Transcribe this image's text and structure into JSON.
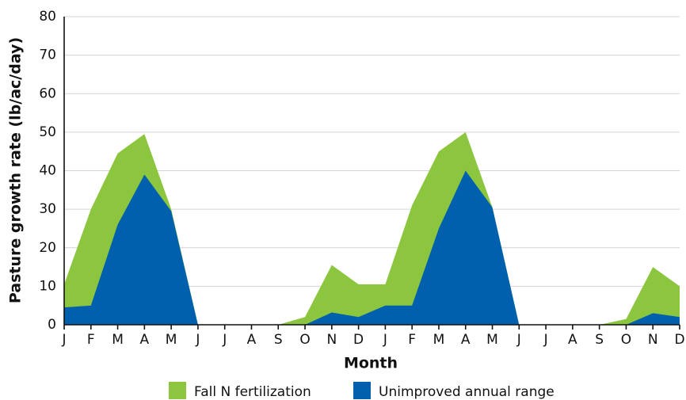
{
  "chart_data": {
    "type": "area",
    "xlabel": "Month",
    "ylabel": "Pasture growth rate (lb/ac/day)",
    "categories": [
      "J",
      "F",
      "M",
      "A",
      "M",
      "J",
      "J",
      "A",
      "S",
      "O",
      "N",
      "D",
      "J",
      "F",
      "M",
      "A",
      "M",
      "J",
      "J",
      "A",
      "S",
      "O",
      "N",
      "D"
    ],
    "series": [
      {
        "name": "Fall N fertilization",
        "color": "#8cc63f",
        "values": [
          10.5,
          30,
          44.5,
          49.5,
          30,
          0,
          0,
          0,
          0,
          2,
          15.5,
          10.5,
          10.5,
          31,
          45,
          50,
          30.5,
          0,
          0,
          0,
          0,
          1.5,
          15,
          10
        ]
      },
      {
        "name": "Unimproved annual range",
        "color": "#0060ae",
        "values": [
          4.5,
          5,
          26,
          39,
          29.5,
          0,
          0,
          0,
          0,
          0,
          3.2,
          2,
          5,
          5,
          25,
          40,
          30.5,
          0,
          0,
          0,
          0,
          0,
          3,
          2
        ]
      }
    ],
    "ylim": [
      0,
      80
    ],
    "yticks": [
      0,
      10,
      20,
      30,
      40,
      50,
      60,
      70,
      80
    ],
    "grid": true,
    "legend": "bottom"
  }
}
